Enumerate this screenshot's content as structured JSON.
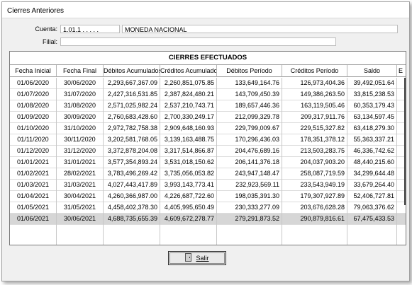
{
  "window": {
    "title": "Cierres Anteriores"
  },
  "form": {
    "cuenta_label": "Cuenta:",
    "cuenta_code": "1.01.1 . . . . .",
    "cuenta_name": "MONEDA NACIONAL",
    "filial_label": "Filial:",
    "filial_value": ""
  },
  "grid": {
    "title": "CIERRES EFECTUADOS",
    "headers": [
      "Fecha Inicial",
      "Fecha Final",
      "Débitos Acumulados",
      "Créditos Acumulados",
      "Débitos Período",
      "Créditos Período",
      "Saldo",
      "E"
    ],
    "rows": [
      [
        "01/06/2020",
        "30/06/2020",
        "2,293,667,367.09",
        "2,260,851,075.85",
        "133,649,164.76",
        "126,973,404.36",
        "39,492,051.64"
      ],
      [
        "01/07/2020",
        "31/07/2020",
        "2,427,316,531.85",
        "2,387,824,480.21",
        "143,709,450.39",
        "149,386,263.50",
        "33,815,238.53"
      ],
      [
        "01/08/2020",
        "31/08/2020",
        "2,571,025,982.24",
        "2,537,210,743.71",
        "189,657,446.36",
        "163,119,505.46",
        "60,353,179.43"
      ],
      [
        "01/09/2020",
        "30/09/2020",
        "2,760,683,428.60",
        "2,700,330,249.17",
        "212,099,329.78",
        "209,317,911.76",
        "63,134,597.45"
      ],
      [
        "01/10/2020",
        "31/10/2020",
        "2,972,782,758.38",
        "2,909,648,160.93",
        "229,799,009.67",
        "229,515,327.82",
        "63,418,279.30"
      ],
      [
        "01/11/2020",
        "30/11/2020",
        "3,202,581,768.05",
        "3,139,163,488.75",
        "170,296,436.03",
        "178,351,378.12",
        "55,363,337.21"
      ],
      [
        "01/12/2020",
        "31/12/2020",
        "3,372,878,204.08",
        "3,317,514,866.87",
        "204,476,689.16",
        "213,503,283.75",
        "46,336,742.62"
      ],
      [
        "01/01/2021",
        "31/01/2021",
        "3,577,354,893.24",
        "3,531,018,150.62",
        "206,141,376.18",
        "204,037,903.20",
        "48,440,215.60"
      ],
      [
        "01/02/2021",
        "28/02/2021",
        "3,783,496,269.42",
        "3,735,056,053.82",
        "243,947,148.47",
        "258,087,719.59",
        "34,299,644.48"
      ],
      [
        "01/03/2021",
        "31/03/2021",
        "4,027,443,417.89",
        "3,993,143,773.41",
        "232,923,569.11",
        "233,543,949.19",
        "33,679,264.40"
      ],
      [
        "01/04/2021",
        "30/04/2021",
        "4,260,366,987.00",
        "4,226,687,722.60",
        "198,035,391.30",
        "179,307,927.89",
        "52,406,727.81"
      ],
      [
        "01/05/2021",
        "31/05/2021",
        "4,458,402,378.30",
        "4,405,995,650.49",
        "230,333,277.09",
        "203,676,628.28",
        "79,063,376.62"
      ],
      [
        "01/06/2021",
        "30/06/2021",
        "4,688,735,655.39",
        "4,609,672,278.77",
        "279,291,873.52",
        "290,879,816.61",
        "67,475,433.53"
      ]
    ],
    "selected_row": 12
  },
  "buttons": {
    "salir_label": "Salir",
    "salir_icon": "door-exit-icon"
  }
}
